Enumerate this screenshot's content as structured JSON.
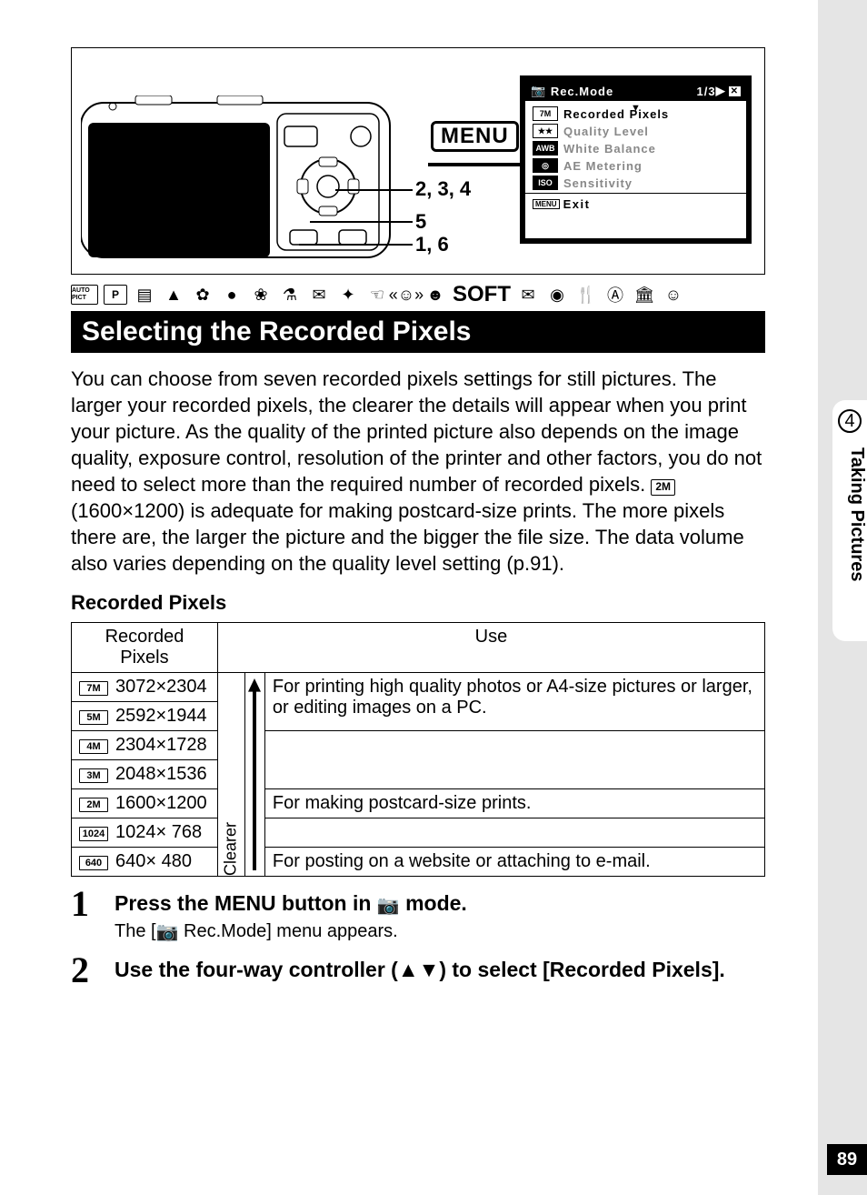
{
  "chapter": {
    "number": "4",
    "title": "Taking Pictures"
  },
  "page_number": "89",
  "diagram": {
    "menu_button_label": "MENU",
    "step_labels": {
      "a": "2, 3, 4",
      "b": "5",
      "c": "1, 6"
    },
    "lcd": {
      "header_title": "Rec.Mode",
      "header_page": "1/3",
      "rows": [
        {
          "badge": "7M",
          "label": "Recorded Pixels",
          "active": true,
          "inv": false
        },
        {
          "badge": "★★",
          "label": "Quality Level",
          "active": false,
          "inv": false
        },
        {
          "badge": "AWB",
          "label": "White Balance",
          "active": false,
          "inv": true
        },
        {
          "badge": "◎",
          "label": "AE Metering",
          "active": false,
          "inv": true
        },
        {
          "badge": "ISO",
          "label": "Sensitivity",
          "active": false,
          "inv": true
        }
      ],
      "footer_menu": "MENU",
      "footer_text": "Exit"
    }
  },
  "mode_strip": {
    "auto_pict": "AUTO\nPICT",
    "p": "P",
    "icons": [
      "▤",
      "▲",
      "✿",
      "●",
      "❀",
      "⚗",
      "✉",
      "✦",
      "☜",
      "«☺»",
      "☻"
    ],
    "soft": "SOFT",
    "icons2": [
      "✉",
      "◉",
      "🍴",
      "Ⓐ",
      "🏛",
      "☺"
    ]
  },
  "section_heading": "Selecting the Recorded Pixels",
  "body_text_before_badge": "You can choose from seven recorded pixels settings for still pictures. The larger your recorded pixels, the clearer the details will appear when you print your picture. As the quality of the printed picture also depends on the image quality, exposure control, resolution of the printer and other factors, you do not need to select more than the required number of recorded pixels. ",
  "body_badge": "2M",
  "body_text_after_badge": " (1600×1200) is adequate for making postcard-size prints. The more pixels there are, the larger the picture and the bigger the file size. The data volume also varies depending on the quality level setting (p.91).",
  "sub_heading": "Recorded Pixels",
  "table": {
    "col1_header": "Recorded Pixels",
    "col2_header": "Use",
    "clearer_label": "Clearer",
    "rows": [
      {
        "badge": "7M",
        "dims": "3072×2304",
        "use": "For printing high quality photos or A4-size pictures or larger, or editing images on a PC."
      },
      {
        "badge": "5M",
        "dims": "2592×1944",
        "use": ""
      },
      {
        "badge": "4M",
        "dims": "2304×1728",
        "use": ""
      },
      {
        "badge": "3M",
        "dims": "2048×1536",
        "use": ""
      },
      {
        "badge": "2M",
        "dims": "1600×1200",
        "use": "For making postcard-size prints."
      },
      {
        "badge": "1024",
        "dims": "1024× 768",
        "use": ""
      },
      {
        "badge": "640",
        "dims": "640× 480",
        "use": "For posting on a website or attaching to e-mail."
      }
    ]
  },
  "steps": [
    {
      "num": "1",
      "title_before": "Press the MENU button in ",
      "title_after": " mode.",
      "desc_before": "The [",
      "desc_after": " Rec.Mode] menu appears."
    },
    {
      "num": "2",
      "title": "Use the four-way controller (▲▼) to select [Recorded Pixels]."
    }
  ]
}
